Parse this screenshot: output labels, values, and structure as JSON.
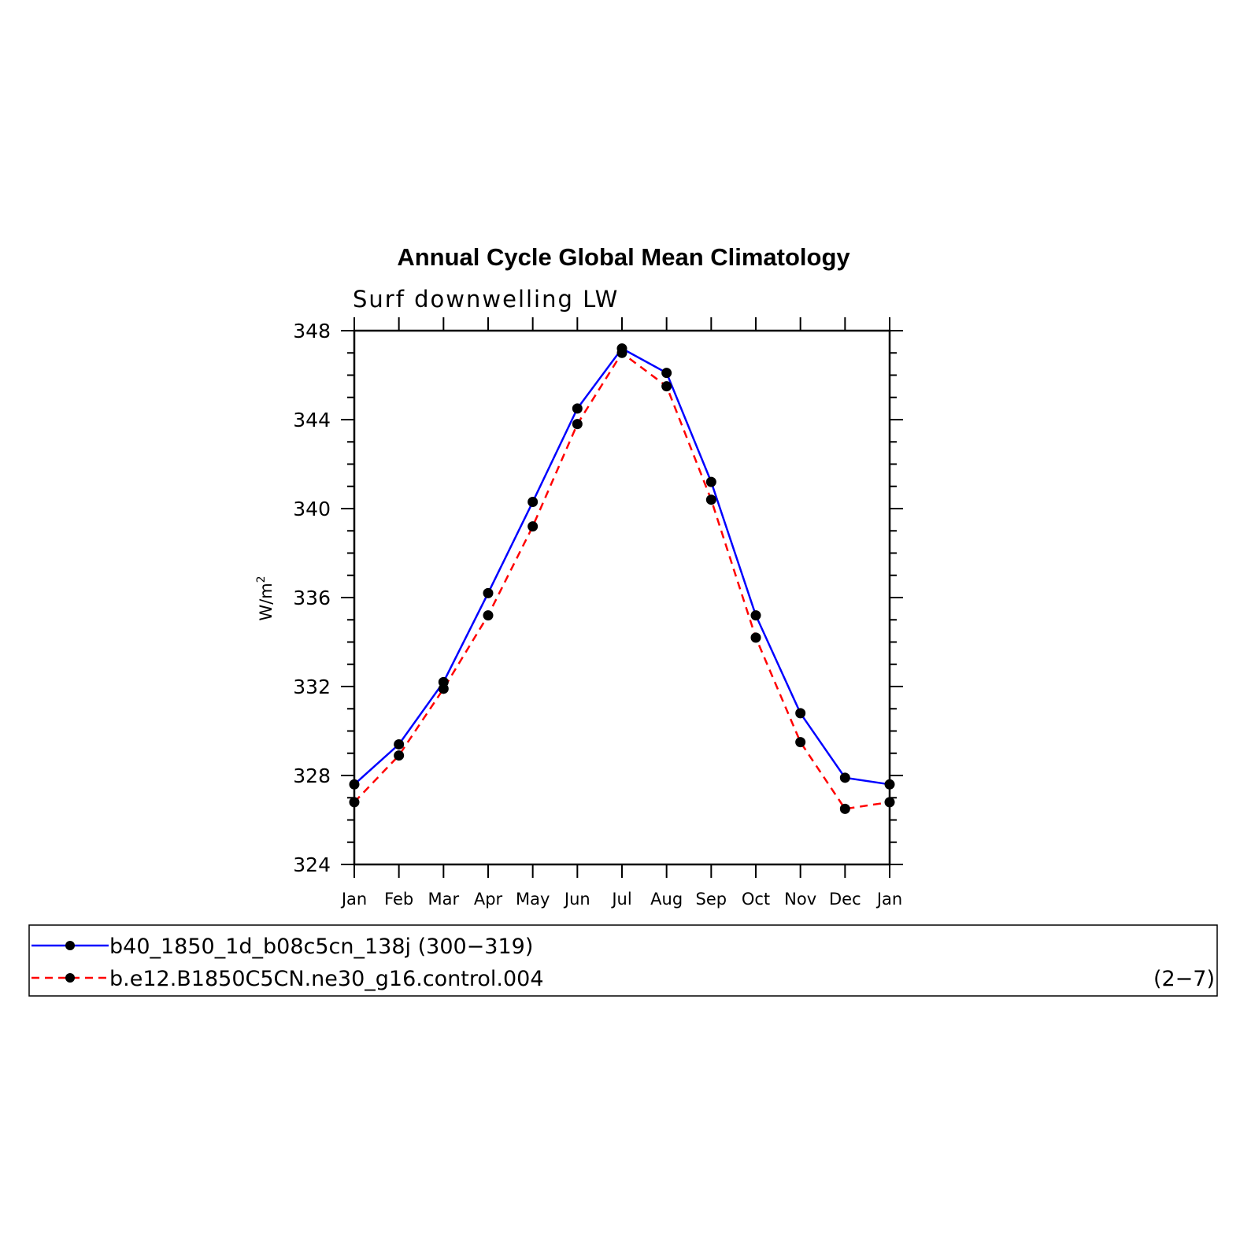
{
  "chart_data": {
    "type": "line",
    "title": "Annual Cycle Global Mean Climatology",
    "subtitle": "Surf downwelling LW",
    "ylabel": "W/m",
    "ylabel_sup": "2",
    "categories": [
      "Jan",
      "Feb",
      "Mar",
      "Apr",
      "May",
      "Jun",
      "Jul",
      "Aug",
      "Sep",
      "Oct",
      "Nov",
      "Dec",
      "Jan"
    ],
    "ylim": [
      324,
      348
    ],
    "yticks": [
      "324",
      "328",
      "332",
      "336",
      "340",
      "344",
      "348"
    ],
    "series": [
      {
        "name": "b40_1850_1d_b08c5cn_138j (300−319)",
        "color": "#0000ff",
        "dash": "solid",
        "values": [
          327.6,
          329.4,
          332.2,
          336.2,
          340.3,
          344.5,
          347.2,
          346.1,
          341.2,
          335.2,
          330.8,
          327.9,
          327.6
        ]
      },
      {
        "name": "b.e12.B1850C5CN.ne30_g16.control.004",
        "color": "#ff0000",
        "dash": "dashed",
        "values": [
          326.8,
          328.9,
          331.9,
          335.2,
          339.2,
          343.8,
          347.0,
          345.5,
          340.4,
          334.2,
          329.5,
          326.5,
          326.8
        ]
      }
    ],
    "legend_note": "(2−7)",
    "legend_position": "bottom"
  }
}
